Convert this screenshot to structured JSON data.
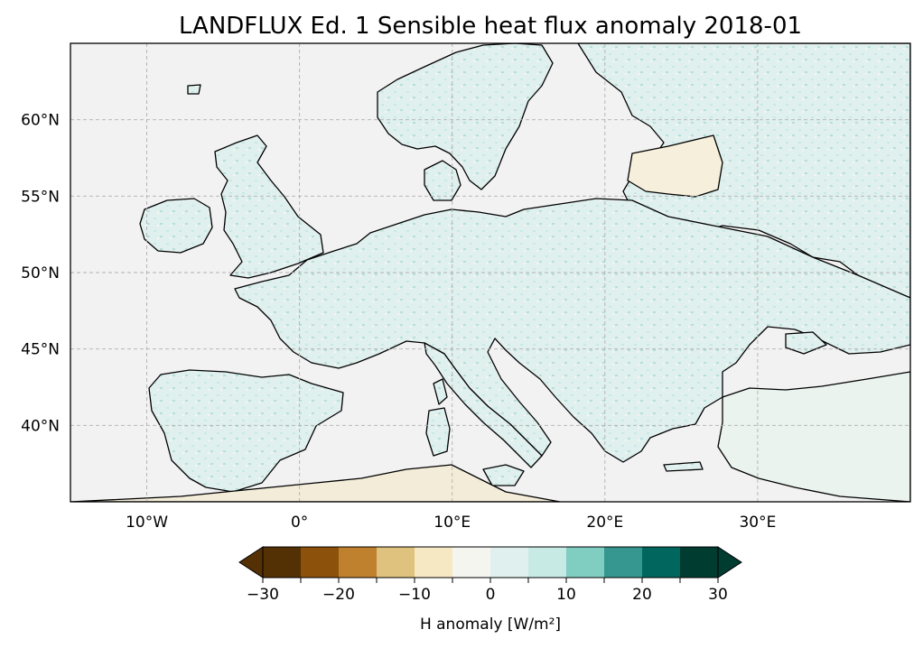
{
  "title": "LANDFLUX Ed. 1 Sensible heat flux anomaly 2018-01",
  "map": {
    "lon_ticks": [
      "10°W",
      "0°",
      "10°E",
      "20°E",
      "30°E"
    ],
    "lat_ticks": [
      "60°N",
      "55°N",
      "50°N",
      "45°N",
      "40°N"
    ],
    "lon_range": [
      -15,
      40
    ],
    "lat_range": [
      35,
      65
    ],
    "gridlines": true,
    "gridline_lons": [
      -10,
      0,
      10,
      20,
      30
    ],
    "gridline_lats": [
      40,
      45,
      50,
      55,
      60
    ],
    "colors": {
      "ocean": "#f2f2f2",
      "coast": "#000000",
      "grid": "#b0b0b0"
    }
  },
  "colorbar": {
    "label": "H anomaly [W/m²]",
    "tick_labels": [
      "−30",
      "−20",
      "−10",
      "0",
      "10",
      "20",
      "30"
    ],
    "levels": [
      -30,
      -25,
      -20,
      -15,
      -10,
      -5,
      0,
      5,
      10,
      15,
      20,
      25,
      30
    ],
    "extend": "both",
    "colormap": "BrBG",
    "colors": [
      "#543005",
      "#8c510a",
      "#bf812d",
      "#dfc27d",
      "#f6e8c3",
      "#f5f5f0",
      "#e0f0ee",
      "#c7eae5",
      "#80cdc1",
      "#35978f",
      "#01665e",
      "#003c30"
    ],
    "extend_low_color": "#543005",
    "extend_high_color": "#003c30"
  }
}
